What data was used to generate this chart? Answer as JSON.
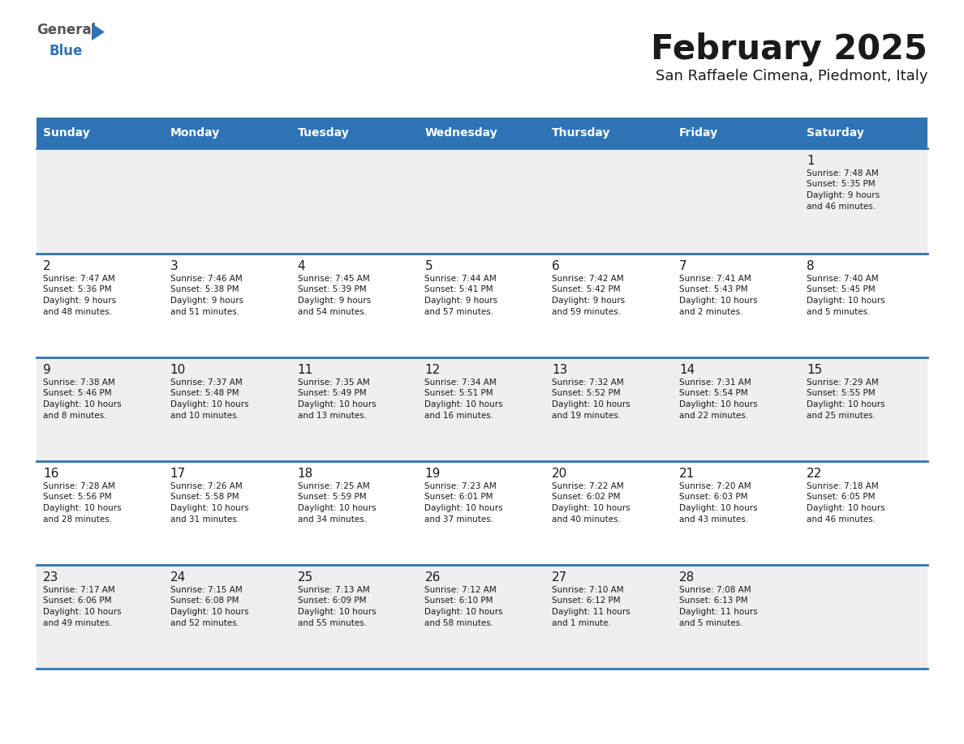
{
  "title": "February 2025",
  "subtitle": "San Raffaele Cimena, Piedmont, Italy",
  "header_bg_color": "#2E74B5",
  "header_text_color": "#FFFFFF",
  "row_separator_color": "#2E74B5",
  "weekdays": [
    "Sunday",
    "Monday",
    "Tuesday",
    "Wednesday",
    "Thursday",
    "Friday",
    "Saturday"
  ],
  "bg_color": "#FFFFFF",
  "cell_bg_color": "#EFEFEF",
  "title_color": "#1A1A1A",
  "subtitle_color": "#1A1A1A",
  "day_number_color": "#1A1A1A",
  "cell_text_color": "#1A1A1A",
  "logo_color": "#2E74B5",
  "calendar_data": [
    [
      null,
      null,
      null,
      null,
      null,
      null,
      {
        "day": 1,
        "sunrise": "7:48 AM",
        "sunset": "5:35 PM",
        "daylight": "9 hours and 46 minutes."
      }
    ],
    [
      {
        "day": 2,
        "sunrise": "7:47 AM",
        "sunset": "5:36 PM",
        "daylight": "9 hours and 48 minutes."
      },
      {
        "day": 3,
        "sunrise": "7:46 AM",
        "sunset": "5:38 PM",
        "daylight": "9 hours and 51 minutes."
      },
      {
        "day": 4,
        "sunrise": "7:45 AM",
        "sunset": "5:39 PM",
        "daylight": "9 hours and 54 minutes."
      },
      {
        "day": 5,
        "sunrise": "7:44 AM",
        "sunset": "5:41 PM",
        "daylight": "9 hours and 57 minutes."
      },
      {
        "day": 6,
        "sunrise": "7:42 AM",
        "sunset": "5:42 PM",
        "daylight": "9 hours and 59 minutes."
      },
      {
        "day": 7,
        "sunrise": "7:41 AM",
        "sunset": "5:43 PM",
        "daylight": "10 hours and 2 minutes."
      },
      {
        "day": 8,
        "sunrise": "7:40 AM",
        "sunset": "5:45 PM",
        "daylight": "10 hours and 5 minutes."
      }
    ],
    [
      {
        "day": 9,
        "sunrise": "7:38 AM",
        "sunset": "5:46 PM",
        "daylight": "10 hours and 8 minutes."
      },
      {
        "day": 10,
        "sunrise": "7:37 AM",
        "sunset": "5:48 PM",
        "daylight": "10 hours and 10 minutes."
      },
      {
        "day": 11,
        "sunrise": "7:35 AM",
        "sunset": "5:49 PM",
        "daylight": "10 hours and 13 minutes."
      },
      {
        "day": 12,
        "sunrise": "7:34 AM",
        "sunset": "5:51 PM",
        "daylight": "10 hours and 16 minutes."
      },
      {
        "day": 13,
        "sunrise": "7:32 AM",
        "sunset": "5:52 PM",
        "daylight": "10 hours and 19 minutes."
      },
      {
        "day": 14,
        "sunrise": "7:31 AM",
        "sunset": "5:54 PM",
        "daylight": "10 hours and 22 minutes."
      },
      {
        "day": 15,
        "sunrise": "7:29 AM",
        "sunset": "5:55 PM",
        "daylight": "10 hours and 25 minutes."
      }
    ],
    [
      {
        "day": 16,
        "sunrise": "7:28 AM",
        "sunset": "5:56 PM",
        "daylight": "10 hours and 28 minutes."
      },
      {
        "day": 17,
        "sunrise": "7:26 AM",
        "sunset": "5:58 PM",
        "daylight": "10 hours and 31 minutes."
      },
      {
        "day": 18,
        "sunrise": "7:25 AM",
        "sunset": "5:59 PM",
        "daylight": "10 hours and 34 minutes."
      },
      {
        "day": 19,
        "sunrise": "7:23 AM",
        "sunset": "6:01 PM",
        "daylight": "10 hours and 37 minutes."
      },
      {
        "day": 20,
        "sunrise": "7:22 AM",
        "sunset": "6:02 PM",
        "daylight": "10 hours and 40 minutes."
      },
      {
        "day": 21,
        "sunrise": "7:20 AM",
        "sunset": "6:03 PM",
        "daylight": "10 hours and 43 minutes."
      },
      {
        "day": 22,
        "sunrise": "7:18 AM",
        "sunset": "6:05 PM",
        "daylight": "10 hours and 46 minutes."
      }
    ],
    [
      {
        "day": 23,
        "sunrise": "7:17 AM",
        "sunset": "6:06 PM",
        "daylight": "10 hours and 49 minutes."
      },
      {
        "day": 24,
        "sunrise": "7:15 AM",
        "sunset": "6:08 PM",
        "daylight": "10 hours and 52 minutes."
      },
      {
        "day": 25,
        "sunrise": "7:13 AM",
        "sunset": "6:09 PM",
        "daylight": "10 hours and 55 minutes."
      },
      {
        "day": 26,
        "sunrise": "7:12 AM",
        "sunset": "6:10 PM",
        "daylight": "10 hours and 58 minutes."
      },
      {
        "day": 27,
        "sunrise": "7:10 AM",
        "sunset": "6:12 PM",
        "daylight": "11 hours and 1 minute."
      },
      {
        "day": 28,
        "sunrise": "7:08 AM",
        "sunset": "6:13 PM",
        "daylight": "11 hours and 5 minutes."
      },
      null
    ]
  ]
}
